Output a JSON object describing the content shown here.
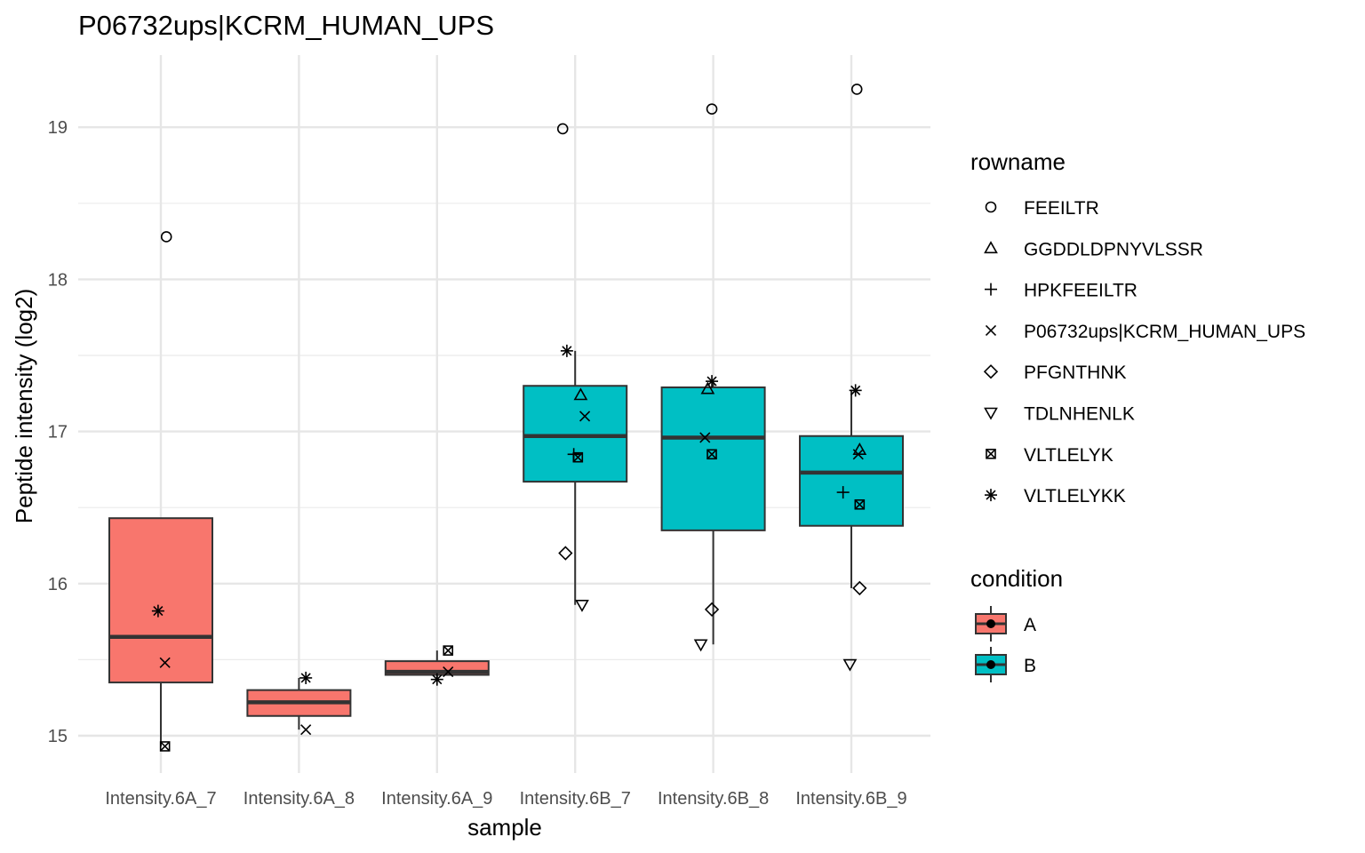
{
  "chart_data": {
    "type": "boxplot",
    "title": "P06732ups|KCRM_HUMAN_UPS",
    "xlabel": "sample",
    "ylabel": "Peptide intensity (log2)",
    "ylim": [
      14.75,
      19.5
    ],
    "yticks": [
      15,
      16,
      17,
      18,
      19
    ],
    "grid": true,
    "categories": [
      "Intensity.6A_7",
      "Intensity.6A_8",
      "Intensity.6A_9",
      "Intensity.6B_7",
      "Intensity.6B_8",
      "Intensity.6B_9"
    ],
    "boxes": [
      {
        "sample": "Intensity.6A_7",
        "condition": "A",
        "lower_whisker": 14.93,
        "q1": 15.35,
        "median": 15.65,
        "q3": 16.43,
        "upper_whisker": 16.43
      },
      {
        "sample": "Intensity.6A_8",
        "condition": "A",
        "lower_whisker": 15.04,
        "q1": 15.13,
        "median": 15.22,
        "q3": 15.3,
        "upper_whisker": 15.38
      },
      {
        "sample": "Intensity.6A_9",
        "condition": "A",
        "lower_whisker": 15.37,
        "q1": 15.4,
        "median": 15.42,
        "q3": 15.49,
        "upper_whisker": 15.56
      },
      {
        "sample": "Intensity.6B_7",
        "condition": "B",
        "lower_whisker": 15.86,
        "q1": 16.67,
        "median": 16.97,
        "q3": 17.3,
        "upper_whisker": 17.53
      },
      {
        "sample": "Intensity.6B_8",
        "condition": "B",
        "lower_whisker": 15.6,
        "q1": 16.35,
        "median": 16.96,
        "q3": 17.29,
        "upper_whisker": 17.33
      },
      {
        "sample": "Intensity.6B_9",
        "condition": "B",
        "lower_whisker": 15.97,
        "q1": 16.38,
        "median": 16.73,
        "q3": 16.97,
        "upper_whisker": 17.27
      }
    ],
    "points": [
      {
        "sample": "Intensity.6A_7",
        "rowname": "FEEILTR",
        "y": 18.28,
        "dx": 0.04
      },
      {
        "sample": "Intensity.6A_7",
        "rowname": "VLTLELYKK",
        "y": 15.82,
        "dx": -0.02
      },
      {
        "sample": "Intensity.6A_7",
        "rowname": "P06732ups|KCRM_HUMAN_UPS",
        "y": 15.48,
        "dx": 0.03
      },
      {
        "sample": "Intensity.6A_7",
        "rowname": "VLTLELYK",
        "y": 14.93,
        "dx": 0.03
      },
      {
        "sample": "Intensity.6A_8",
        "rowname": "VLTLELYKK",
        "y": 15.38,
        "dx": 0.05
      },
      {
        "sample": "Intensity.6A_8",
        "rowname": "P06732ups|KCRM_HUMAN_UPS",
        "y": 15.04,
        "dx": 0.05
      },
      {
        "sample": "Intensity.6A_9",
        "rowname": "VLTLELYK",
        "y": 15.56,
        "dx": 0.08
      },
      {
        "sample": "Intensity.6A_9",
        "rowname": "P06732ups|KCRM_HUMAN_UPS",
        "y": 15.42,
        "dx": 0.08
      },
      {
        "sample": "Intensity.6A_9",
        "rowname": "VLTLELYKK",
        "y": 15.37,
        "dx": 0.0
      },
      {
        "sample": "Intensity.6B_7",
        "rowname": "FEEILTR",
        "y": 18.99,
        "dx": -0.09
      },
      {
        "sample": "Intensity.6B_7",
        "rowname": "VLTLELYKK",
        "y": 17.53,
        "dx": -0.06
      },
      {
        "sample": "Intensity.6B_7",
        "rowname": "GGDDLDPNYVLSSR",
        "y": 17.24,
        "dx": 0.04
      },
      {
        "sample": "Intensity.6B_7",
        "rowname": "P06732ups|KCRM_HUMAN_UPS",
        "y": 17.1,
        "dx": 0.07
      },
      {
        "sample": "Intensity.6B_7",
        "rowname": "HPKFEEILTR",
        "y": 16.85,
        "dx": -0.01
      },
      {
        "sample": "Intensity.6B_7",
        "rowname": "VLTLELYK",
        "y": 16.83,
        "dx": 0.02
      },
      {
        "sample": "Intensity.6B_7",
        "rowname": "PFGNTHNK",
        "y": 16.2,
        "dx": -0.07
      },
      {
        "sample": "Intensity.6B_7",
        "rowname": "TDLNHENLK",
        "y": 15.86,
        "dx": 0.05
      },
      {
        "sample": "Intensity.6B_8",
        "rowname": "FEEILTR",
        "y": 19.12,
        "dx": -0.01
      },
      {
        "sample": "Intensity.6B_8",
        "rowname": "VLTLELYKK",
        "y": 17.33,
        "dx": -0.01
      },
      {
        "sample": "Intensity.6B_8",
        "rowname": "GGDDLDPNYVLSSR",
        "y": 17.28,
        "dx": -0.04
      },
      {
        "sample": "Intensity.6B_8",
        "rowname": "P06732ups|KCRM_HUMAN_UPS",
        "y": 16.96,
        "dx": -0.06
      },
      {
        "sample": "Intensity.6B_8",
        "rowname": "VLTLELYK",
        "y": 16.85,
        "dx": -0.01
      },
      {
        "sample": "Intensity.6B_8",
        "rowname": "PFGNTHNK",
        "y": 15.83,
        "dx": -0.01
      },
      {
        "sample": "Intensity.6B_8",
        "rowname": "TDLNHENLK",
        "y": 15.6,
        "dx": -0.09
      },
      {
        "sample": "Intensity.6B_9",
        "rowname": "FEEILTR",
        "y": 19.25,
        "dx": 0.04
      },
      {
        "sample": "Intensity.6B_9",
        "rowname": "VLTLELYKK",
        "y": 17.27,
        "dx": 0.03
      },
      {
        "sample": "Intensity.6B_9",
        "rowname": "GGDDLDPNYVLSSR",
        "y": 16.88,
        "dx": 0.06
      },
      {
        "sample": "Intensity.6B_9",
        "rowname": "P06732ups|KCRM_HUMAN_UPS",
        "y": 16.85,
        "dx": 0.05
      },
      {
        "sample": "Intensity.6B_9",
        "rowname": "HPKFEEILTR",
        "y": 16.6,
        "dx": -0.06
      },
      {
        "sample": "Intensity.6B_9",
        "rowname": "VLTLELYK",
        "y": 16.52,
        "dx": 0.06
      },
      {
        "sample": "Intensity.6B_9",
        "rowname": "PFGNTHNK",
        "y": 15.97,
        "dx": 0.06
      },
      {
        "sample": "Intensity.6B_9",
        "rowname": "TDLNHENLK",
        "y": 15.47,
        "dx": -0.01
      }
    ],
    "legend": {
      "placement": "right",
      "rowname": {
        "title": "rowname",
        "entries": [
          {
            "label": "FEEILTR",
            "shape": "circle-open"
          },
          {
            "label": "GGDDLDPNYVLSSR",
            "shape": "triangle-open"
          },
          {
            "label": "HPKFEEILTR",
            "shape": "plus"
          },
          {
            "label": "P06732ups|KCRM_HUMAN_UPS",
            "shape": "cross"
          },
          {
            "label": "PFGNTHNK",
            "shape": "diamond-open"
          },
          {
            "label": "TDLNHENLK",
            "shape": "triangle-down-open"
          },
          {
            "label": "VLTLELYK",
            "shape": "square-cross"
          },
          {
            "label": "VLTLELYKK",
            "shape": "asterisk"
          }
        ]
      },
      "condition": {
        "title": "condition",
        "entries": [
          {
            "label": "A",
            "color": "#F8766D"
          },
          {
            "label": "B",
            "color": "#00BFC4"
          }
        ]
      }
    }
  }
}
